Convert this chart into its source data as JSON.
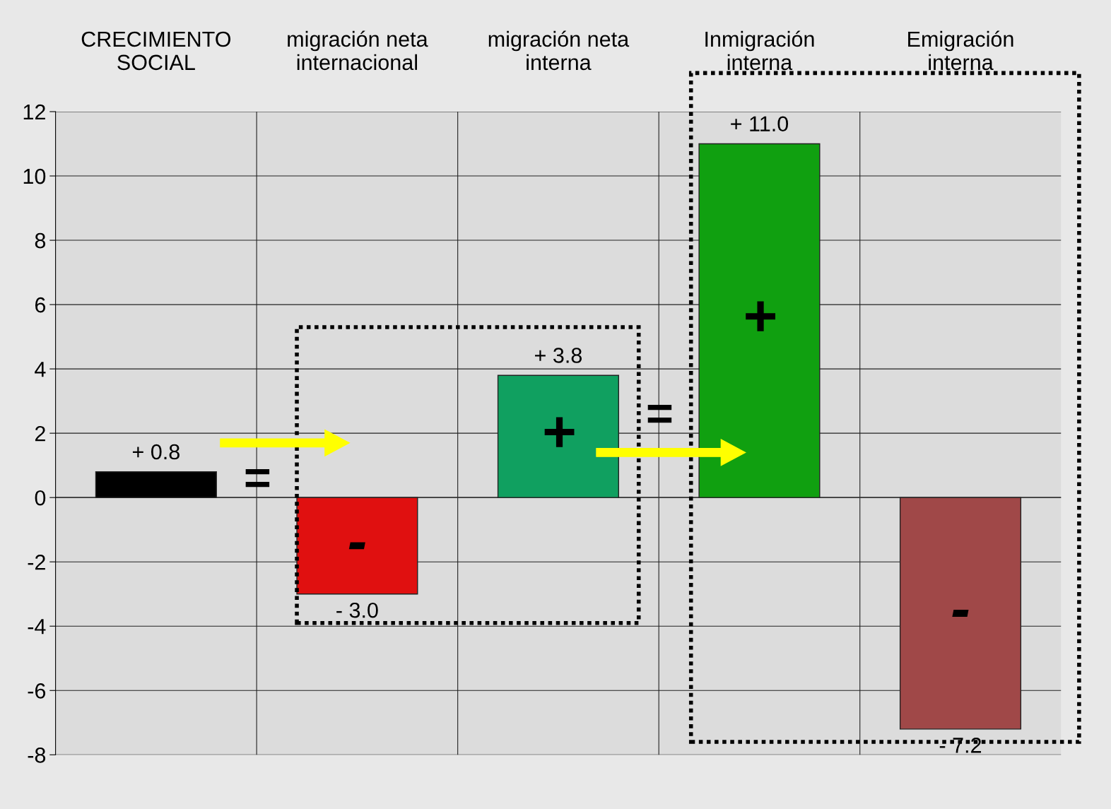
{
  "chart_data": {
    "type": "bar",
    "categories": [
      "CRECIMIENTO\nSOCIAL",
      "migración neta\ninternacional",
      "migración neta\ninterna",
      "Inmigración\ninterna",
      "Emigración\ninterna"
    ],
    "values": [
      0.8,
      -3.0,
      3.8,
      11.0,
      -7.2
    ],
    "colors": [
      "#000000",
      "#e01010",
      "#10a060",
      "#10a010",
      "#a04848"
    ],
    "value_labels": [
      "+ 0.8",
      "- 3.0",
      "+ 3.8",
      "+ 11.0",
      "- 7.2"
    ],
    "annotations": [
      "=",
      "=",
      "-",
      "+",
      "+",
      "-"
    ],
    "ylim": [
      -8,
      12
    ],
    "yticks": [
      -8,
      -6,
      -4,
      -2,
      0,
      2,
      4,
      6,
      8,
      10,
      12
    ],
    "grid": true
  }
}
